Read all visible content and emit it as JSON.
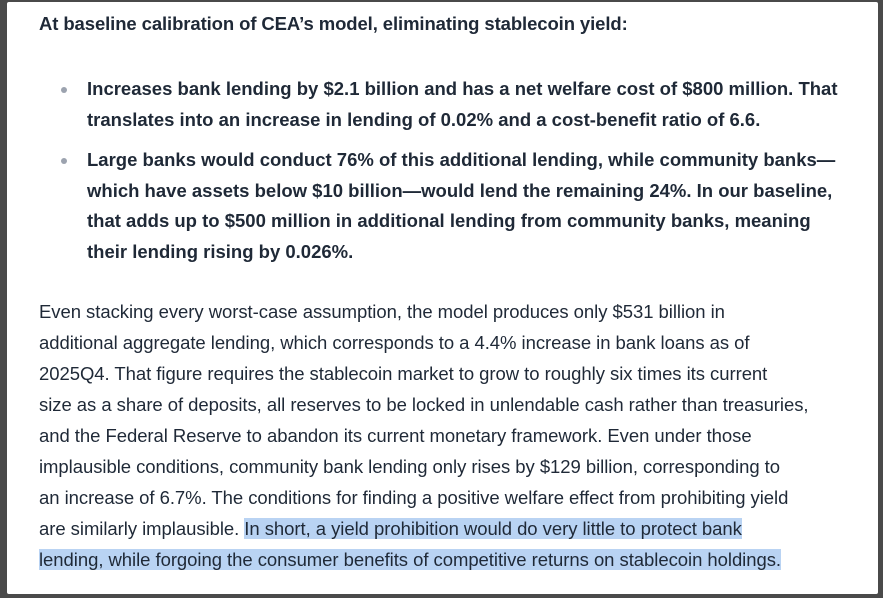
{
  "heading": "At baseline calibration of CEA’s model, eliminating stablecoin yield:",
  "bullets": [
    {
      "lines": [
        "Increases bank lending by $2.1 billion and has a net welfare cost of $800 million. That",
        "translates into an increase in lending of 0.02% and a cost-benefit ratio of 6.6."
      ]
    },
    {
      "lines": [
        "Large banks would conduct 76% of this additional lending, while community banks—",
        "which have assets below $10 billion—would lend the remaining 24%. In our baseline,",
        "that adds up to $500 million in additional lending from community banks, meaning",
        "their lending rising by 0.026%."
      ]
    }
  ],
  "paragraph": {
    "lines": [
      "Even stacking every worst-case assumption, the model produces only $531 billion in",
      "additional aggregate lending, which corresponds to a 4.4% increase in bank loans as of",
      "2025Q4. That figure requires the stablecoin market to grow to roughly six times its current",
      "size as a share of deposits, all reserves to be locked in unlendable cash rather than treasuries,",
      "and the Federal Reserve to abandon its current monetary framework. Even under those",
      "implausible conditions, community bank lending only rises by $129 billion, corresponding to",
      "an increase of 6.7%. The conditions for finding a positive welfare effect from prohibiting yield"
    ],
    "line8_plain": "are similarly implausible. ",
    "line8_highlight": "In short, a yield prohibition would do very little to protect bank",
    "line9_highlight": "lending, while forgoing the consumer benefits of competitive returns on stablecoin holdings."
  },
  "colors": {
    "text": "#1f2937",
    "highlight": "#b9d3f3",
    "bullet": "#9ca3af",
    "frame": "#4a4a4a"
  }
}
